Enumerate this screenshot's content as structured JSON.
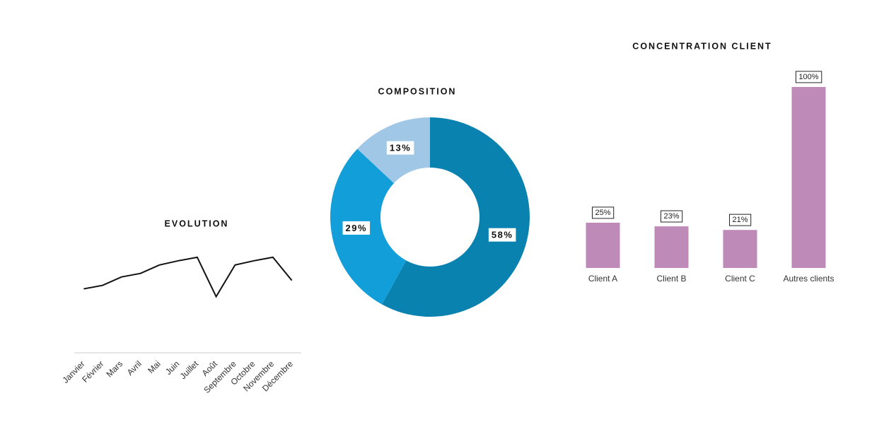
{
  "chart_data": [
    {
      "type": "line",
      "title": "EVOLUTION",
      "categories": [
        "Janvier",
        "Février",
        "Mars",
        "Avril",
        "Mai",
        "Juin",
        "Juillet",
        "Août",
        "Septembre",
        "Octobre",
        "Novembre",
        "Décembre"
      ],
      "values": [
        91,
        96,
        108,
        113,
        125,
        131,
        136,
        80,
        125,
        131,
        136,
        103
      ],
      "color": "#111111",
      "ylim": [
        0,
        160
      ]
    },
    {
      "type": "pie",
      "title": "COMPOSITION",
      "categories": [
        null,
        null,
        null
      ],
      "values": [
        58,
        29,
        13
      ],
      "value_labels": [
        "58%",
        "29%",
        "13%"
      ],
      "colors": [
        "#0a82b0",
        "#129ed8",
        "#a0c8e6"
      ]
    },
    {
      "type": "bar",
      "title": "CONCENTRATION CLIENT",
      "categories": [
        "Client A",
        "Client B",
        "Client C",
        "Autres clients"
      ],
      "values": [
        25,
        23,
        21,
        100
      ],
      "value_labels": [
        "25%",
        "23%",
        "21%",
        "100%"
      ],
      "color": "#be8ab8",
      "ylim": [
        0,
        100
      ]
    }
  ]
}
